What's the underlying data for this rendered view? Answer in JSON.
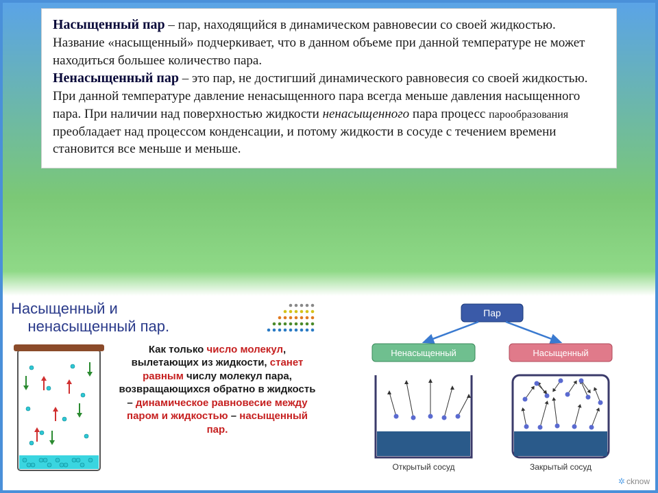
{
  "top": {
    "term1": "Насыщенный пар",
    "def1_a": " – пар, находящийся в динамическом равновесии со своей жидкостью. Название «насыщенный» подчеркивает, что в данном объеме при данной температуре не может находиться большее количество пара.",
    "term2": "Ненасыщенный пар",
    "def2_a": " – это пар, не достигший динамического равновесия со своей жидкостью. При данной температуре давление ненасыщенного пара всегда меньше давления насыщенного пара. При наличии над поверхностью жидкости ",
    "def2_italic": "ненасыщенного",
    "def2_b": " пара процесс ",
    "def2_small": "парообразования",
    "def2_c": " преобладает над процессом конденсации, и потому жидкости в сосуде с течением времени становится все меньше и меньше."
  },
  "bottom_left": {
    "title_a": "Насыщенный и",
    "title_b": "ненасыщенный пар.",
    "t1": "Как только ",
    "t2": "число молекул",
    "t3": ", вылетающих из жидкости, ",
    "t4": "станет равным",
    "t5": " числу молекул пара, возвращающихся обратно в жидкость – ",
    "t6": "динамическое равновесие между паром и жидкостью",
    "t7": " – ",
    "t8": "насыщенный пар.",
    "flask": {
      "outline": "#555555",
      "lid": "#8b4b2a",
      "water": "#3ad5e0",
      "mol": "#2ec7d4",
      "arrow_up": "#d03030",
      "arrow_down": "#2a8a30"
    },
    "dot_colors": [
      "#888888",
      "#d4c21a",
      "#e07a20",
      "#4a8a2a",
      "#2a7ac4"
    ]
  },
  "bottom_right": {
    "top_label": "Пар",
    "left_label": "Ненасыщенный",
    "right_label": "Насыщенный",
    "open_caption": "Открытый сосуд",
    "closed_caption": "Закрытый сосуд",
    "colors": {
      "top_box": "#3a5aa8",
      "left_box": "#6fbf8f",
      "right_box": "#e07a8a",
      "arrow": "#3a7ad0",
      "vessel_border": "#3a3a6a",
      "water": "#2a5a8a",
      "molecule": "#5a6ad0"
    }
  },
  "watermark": "cknow"
}
